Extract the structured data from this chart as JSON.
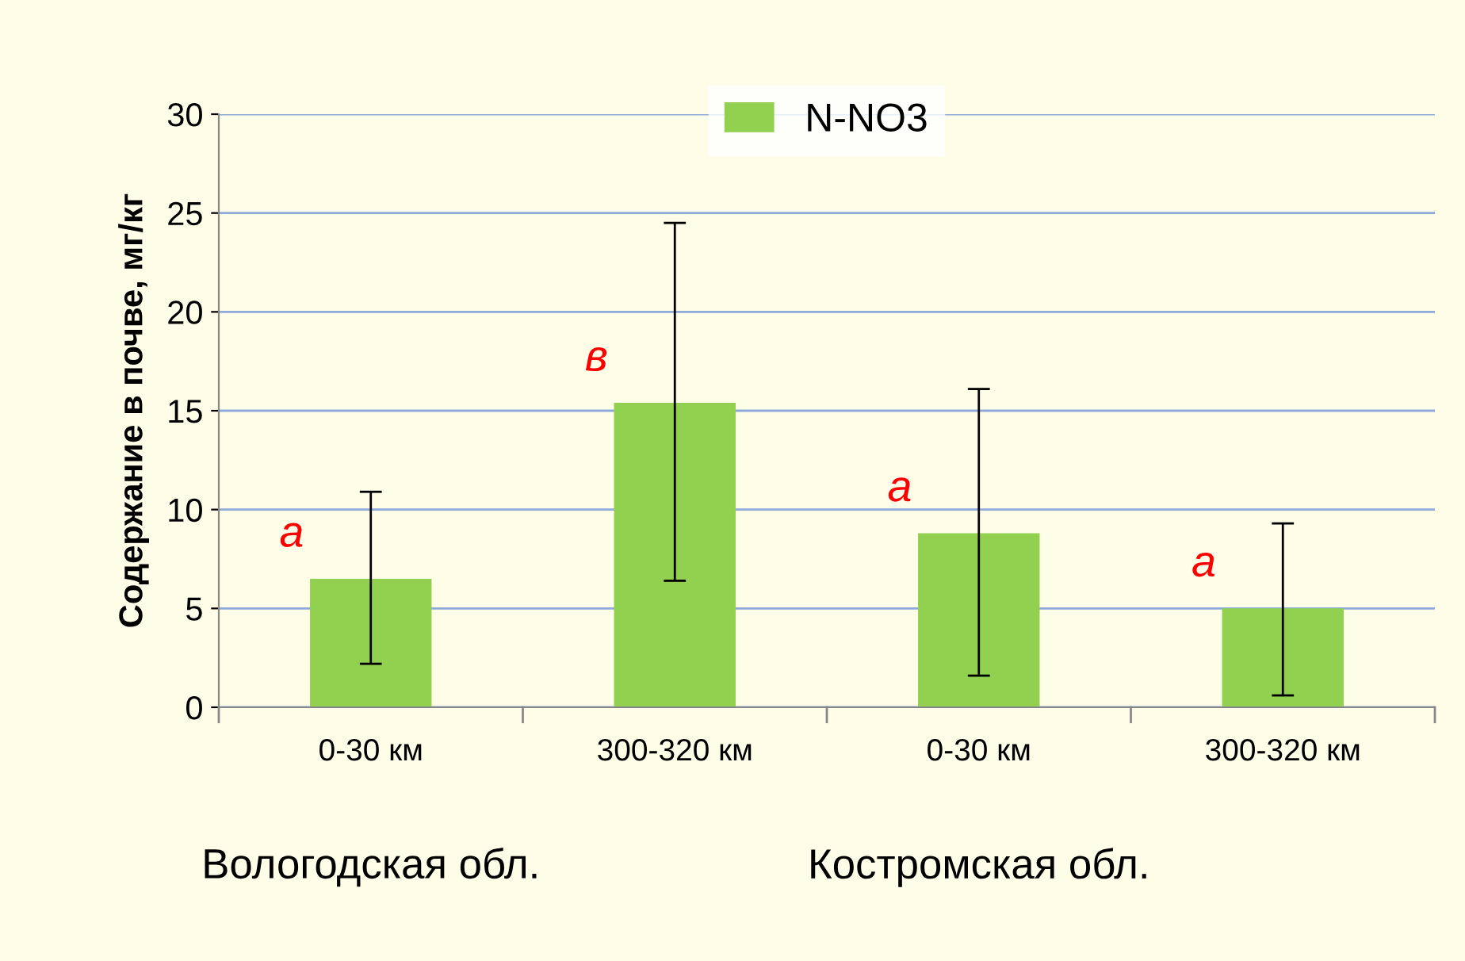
{
  "chart_data": {
    "type": "bar",
    "categories": [
      "0-30 км",
      "300-320 км",
      "0-30 км",
      "300-320 км"
    ],
    "series": [
      {
        "name": "N-NO3",
        "color": "#92d050",
        "values": [
          6.5,
          15.4,
          8.8,
          5.0
        ],
        "errors": [
          [
            2.2,
            10.9
          ],
          [
            6.4,
            24.5
          ],
          [
            1.6,
            16.1
          ],
          [
            0.6,
            9.3
          ]
        ]
      }
    ],
    "ylabel": "Содержание в почве, мг/кг",
    "ylim": [
      0,
      30
    ],
    "yticks": [
      0,
      5,
      10,
      15,
      20,
      25,
      30
    ],
    "grid": "y",
    "legend": "top",
    "annotations": [
      "а",
      "в",
      "а",
      "а",
      "Вологодская обл.",
      "Костромская обл."
    ]
  }
}
